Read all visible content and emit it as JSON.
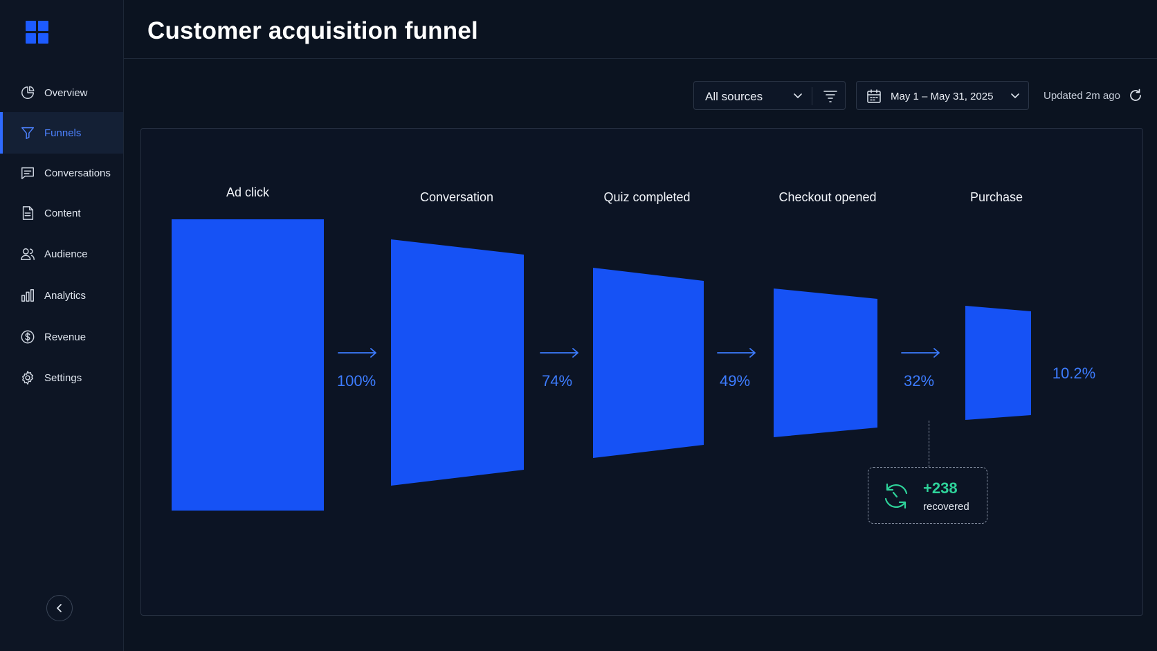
{
  "app": {
    "title": "Customer acquisition funnel",
    "accent": "#1d5bff"
  },
  "sidebar": {
    "items": [
      {
        "label": "Overview",
        "icon": "pie-chart-icon"
      },
      {
        "label": "Funnels",
        "icon": "funnel-icon",
        "active": true
      },
      {
        "label": "Conversations",
        "icon": "chat-icon"
      },
      {
        "label": "Content",
        "icon": "document-icon"
      },
      {
        "label": "Audience",
        "icon": "users-icon"
      },
      {
        "label": "Analytics",
        "icon": "bar-chart-icon"
      },
      {
        "label": "Revenue",
        "icon": "dollar-icon"
      },
      {
        "label": "Settings",
        "icon": "gear-icon"
      }
    ],
    "collapse_icon": "chevron-left-icon"
  },
  "toolbar": {
    "source_value": "All sources",
    "date_range": "May 1 – May 31, 2025",
    "updated": "Updated 2m ago"
  },
  "funnel": {
    "stages": [
      {
        "label": "Ad click",
        "rate": "100%",
        "color": "#1652f5"
      },
      {
        "label": "Conversation",
        "rate": "74%",
        "color": "#1652f5"
      },
      {
        "label": "Quiz completed",
        "rate": "49%",
        "color": "#1652f5"
      },
      {
        "label": "Checkout opened",
        "rate": "32%",
        "color": "#1652f5"
      },
      {
        "label": "Purchase",
        "rate": "10.2%",
        "color": "#1652f5"
      }
    ],
    "recovered": {
      "value": "+238",
      "label": "recovered",
      "color": "#2ed39a"
    }
  }
}
